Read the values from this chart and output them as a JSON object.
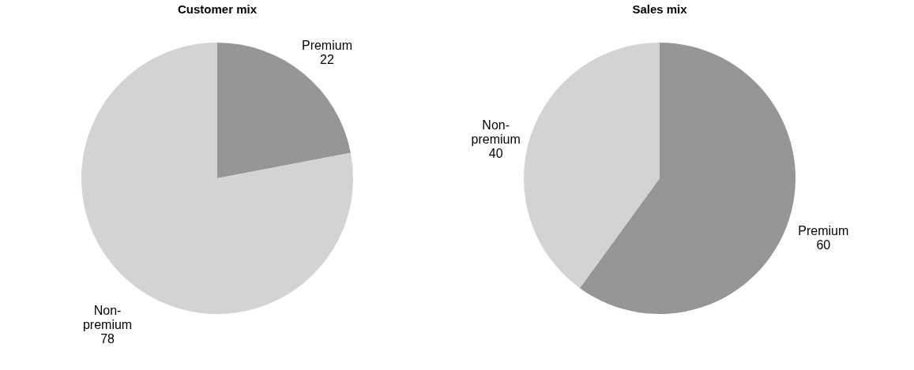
{
  "chart_data": [
    {
      "type": "pie",
      "title": "Customer mix",
      "categories": [
        "Premium",
        "Non-premium"
      ],
      "values": [
        22,
        78
      ],
      "colors": [
        "#969696",
        "#d3d3d3"
      ],
      "data_labels": true
    },
    {
      "type": "pie",
      "title": "Sales mix",
      "categories": [
        "Premium",
        "Non-premium"
      ],
      "values": [
        60,
        40
      ],
      "colors": [
        "#969696",
        "#d3d3d3"
      ],
      "data_labels": true
    }
  ]
}
